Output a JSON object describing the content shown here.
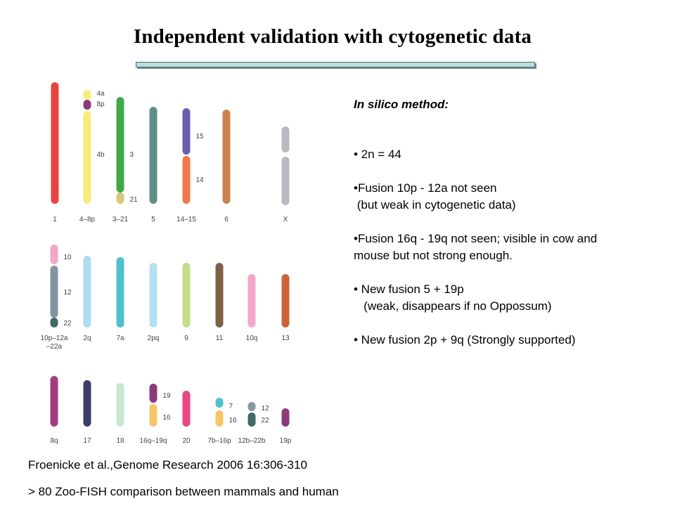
{
  "title": "Independent validation with cytogenetic data",
  "method": {
    "heading": "In silico method:",
    "lines": [
      "• 2n = 44",
      "•Fusion 10p - 12a not seen",
      " (but weak in cytogenetic data)",
      "•Fusion 16q - 19q not seen; visible in cow and",
      "mouse but not strong enough.",
      "• New fusion 5 + 19p",
      "   (weak, disappears if no Oppossum)",
      "• New fusion 2p + 9q (Strongly supported)"
    ]
  },
  "footer": {
    "citation": "Froenicke et al.,Genome Research 2006 16:306-310",
    "note": "> 80 Zoo-FISH comparison between mammals and human"
  },
  "karyotype": {
    "rows": [
      {
        "chromosomes": [
          {
            "label": "1",
            "segments": [
              {
                "color": "#e8433f"
              }
            ]
          },
          {
            "label": "4–8p",
            "segments": [
              {
                "color": "#f6ed7a",
                "band": "4a"
              },
              {
                "color": "#8a3a78",
                "band": "8p"
              },
              {
                "color": "#f6ed7a",
                "band": "4b"
              }
            ]
          },
          {
            "label": "3–21",
            "segments": [
              {
                "color": "#41a84a",
                "band": "3"
              },
              {
                "color": "#d6c979",
                "band": "21"
              }
            ]
          },
          {
            "label": "5",
            "segments": [
              {
                "color": "#5f8e87"
              }
            ]
          },
          {
            "label": "14–15",
            "segments": [
              {
                "color": "#6a5fad",
                "band": "15"
              },
              {
                "color": "#f0774a",
                "band": "14"
              }
            ]
          },
          {
            "label": "6",
            "segments": [
              {
                "color": "#c8834f"
              }
            ]
          },
          {
            "label": "X",
            "segments": [
              {
                "color": "#b9bbc2"
              },
              {
                "color": "#b9bbc2"
              }
            ]
          }
        ]
      },
      {
        "chromosomes": [
          {
            "label": "10p–12a",
            "label2": "–22a",
            "segments": [
              {
                "color": "#f2a7c8",
                "band": "10"
              },
              {
                "color": "#7f96a0",
                "band": "12"
              },
              {
                "color": "#3f6b64",
                "band": "22"
              }
            ]
          },
          {
            "label": "2q",
            "segments": [
              {
                "color": "#aedcf3"
              }
            ]
          },
          {
            "label": "7a",
            "segments": [
              {
                "color": "#50bfcf"
              }
            ]
          },
          {
            "label": "2pq",
            "segments": [
              {
                "color": "#b4e0f4"
              }
            ]
          },
          {
            "label": "9",
            "segments": [
              {
                "color": "#c5de87"
              }
            ]
          },
          {
            "label": "11",
            "segments": [
              {
                "color": "#7d6147"
              }
            ]
          },
          {
            "label": "10q",
            "segments": [
              {
                "color": "#f2a7c8"
              }
            ]
          },
          {
            "label": "13",
            "segments": [
              {
                "color": "#cf6238"
              }
            ]
          }
        ]
      },
      {
        "chromosomes": [
          {
            "label": "8q",
            "segments": [
              {
                "color": "#a23c80"
              }
            ]
          },
          {
            "label": "17",
            "segments": [
              {
                "color": "#3c3c6a"
              }
            ]
          },
          {
            "label": "18",
            "segments": [
              {
                "color": "#c9e8d3"
              }
            ]
          },
          {
            "label": "16q–19q",
            "segments": [
              {
                "color": "#8d3a78",
                "band": "19"
              },
              {
                "color": "#f7c567",
                "band": "16"
              }
            ]
          },
          {
            "label": "20",
            "segments": [
              {
                "color": "#e94682"
              }
            ]
          },
          {
            "label": "7b–16p",
            "segments": [
              {
                "color": "#4fc2cf",
                "band": "7"
              },
              {
                "color": "#f7c567",
                "band": "16"
              }
            ]
          },
          {
            "label": "12b–22b",
            "segments": [
              {
                "color": "#8498a4",
                "band": "12"
              },
              {
                "color": "#3f6b64",
                "band": "22"
              }
            ]
          },
          {
            "label": "19p",
            "segments": [
              {
                "color": "#8d3a78"
              }
            ]
          }
        ]
      }
    ]
  }
}
